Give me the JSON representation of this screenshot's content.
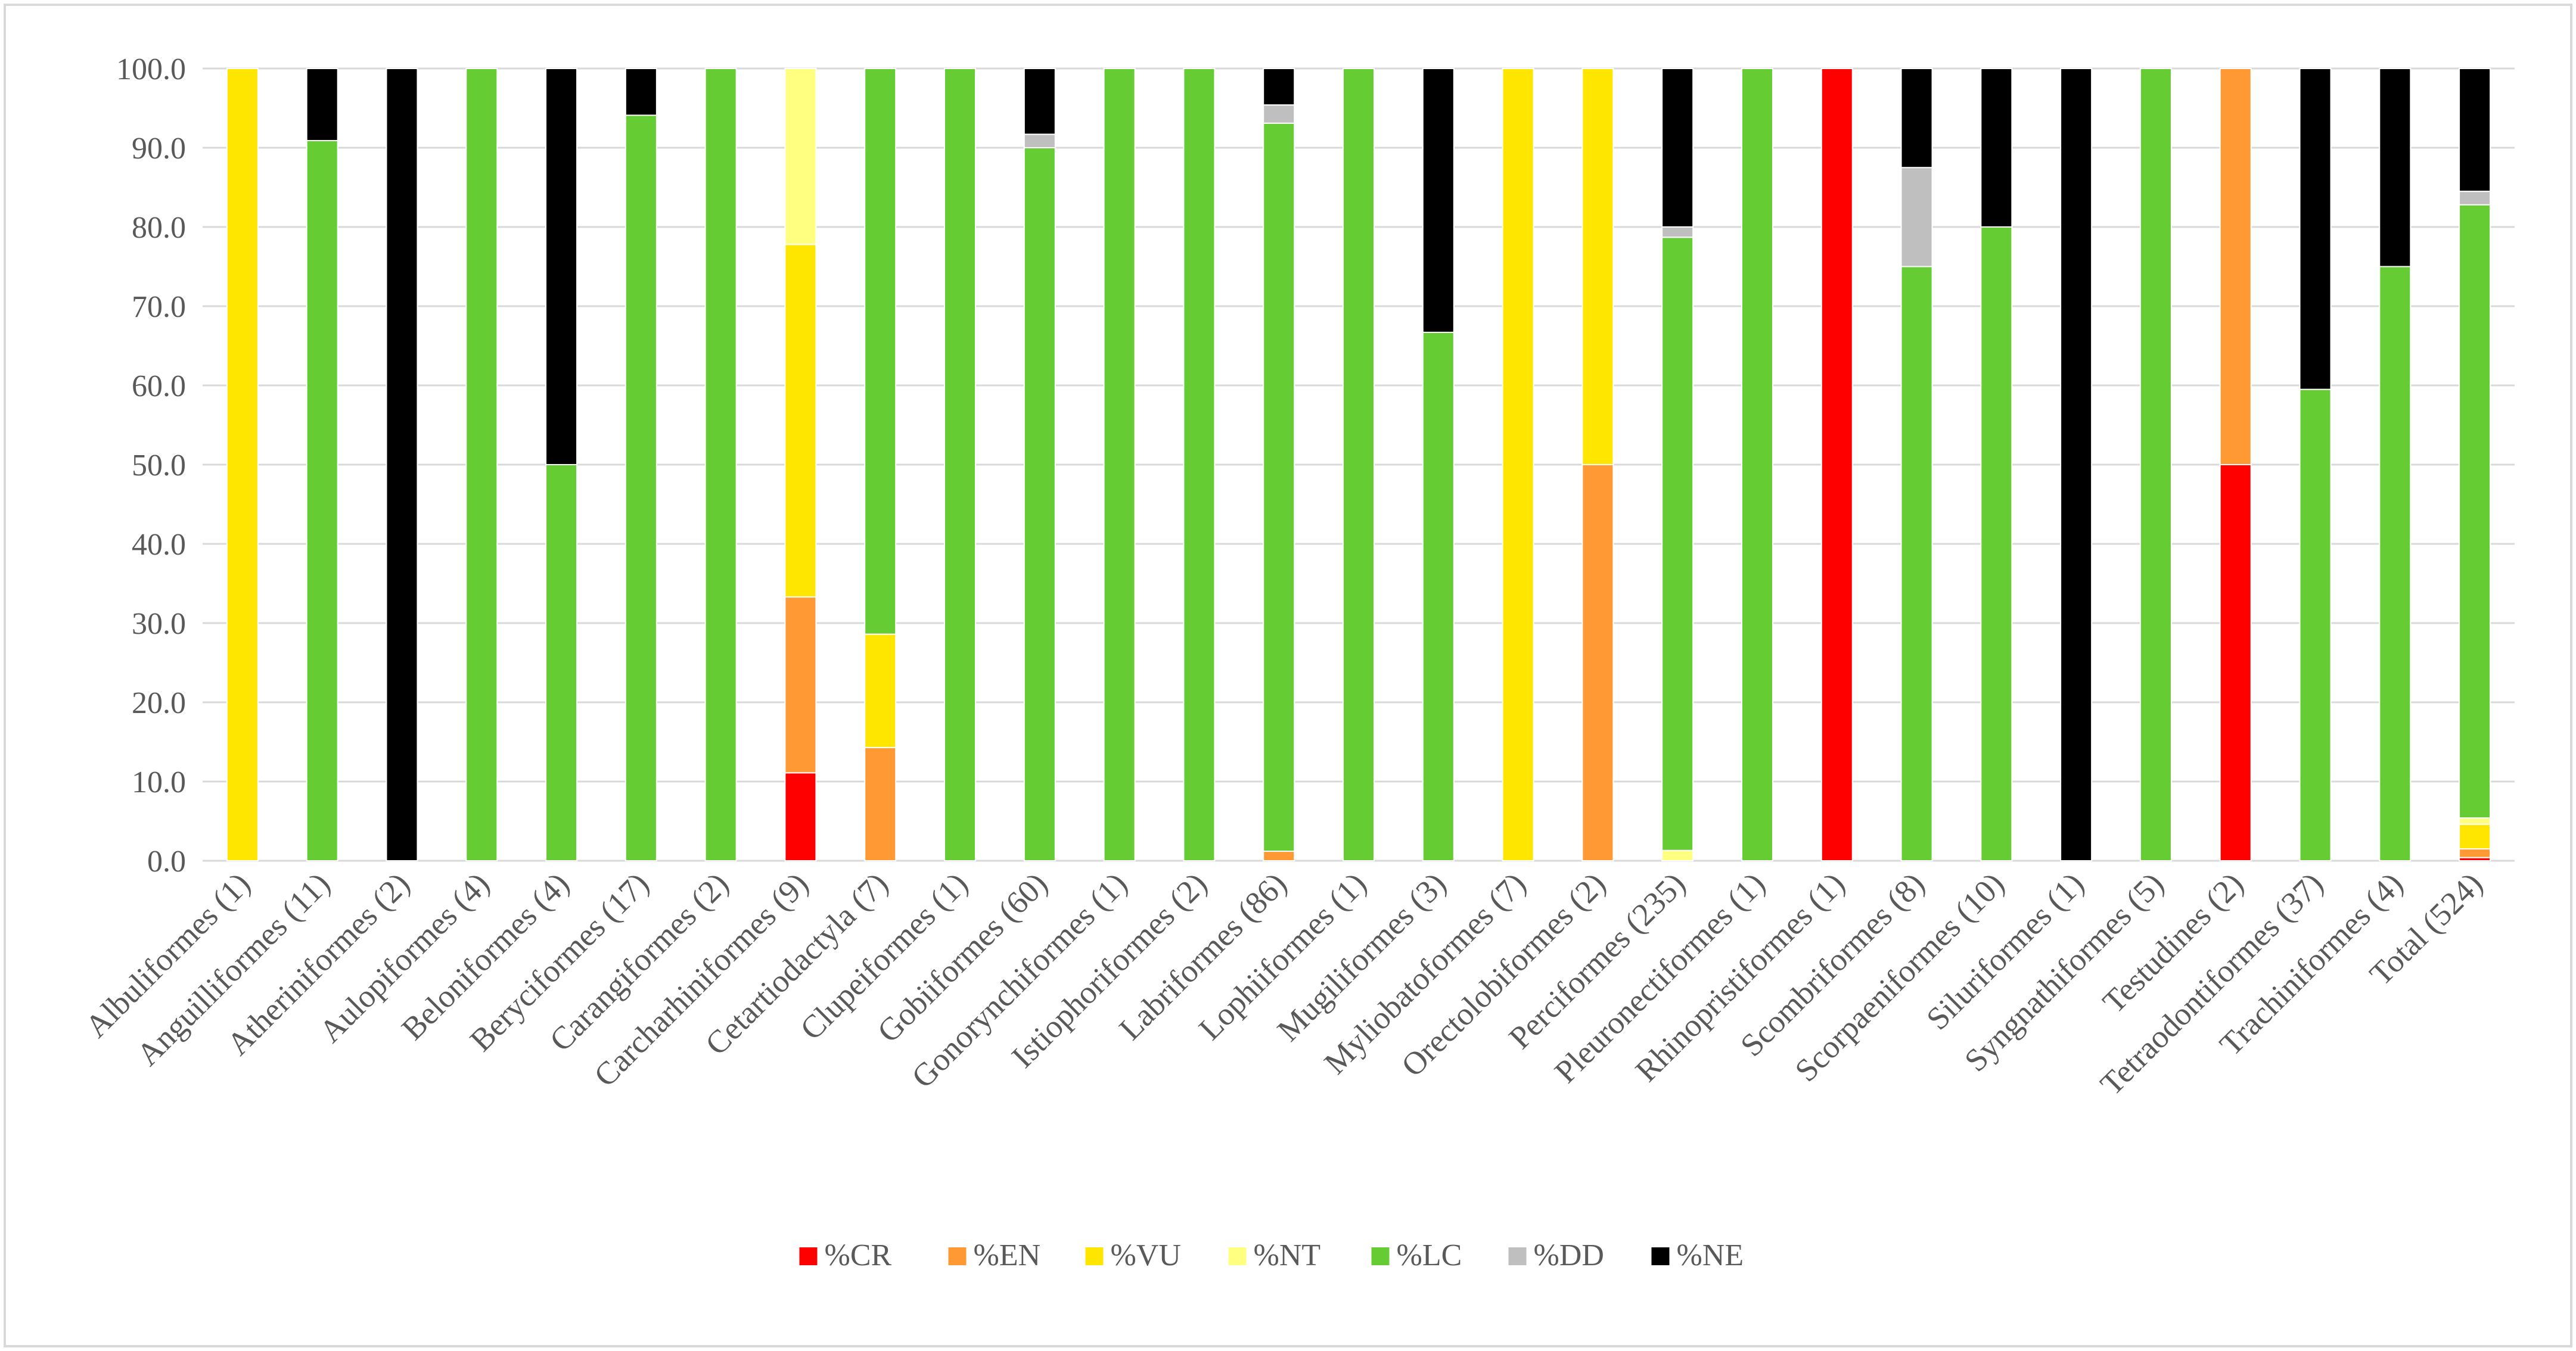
{
  "chart_data": {
    "type": "bar",
    "stacked": true,
    "title": "",
    "xlabel": "",
    "ylabel": "",
    "ylim": [
      0,
      100
    ],
    "ytick_step": 10,
    "grid": "horizontal",
    "legend_position": "bottom",
    "yticks": [
      "0.0",
      "10.0",
      "20.0",
      "30.0",
      "40.0",
      "50.0",
      "60.0",
      "70.0",
      "80.0",
      "90.0",
      "100.0"
    ],
    "categories": [
      "Albuliformes (1)",
      "Anguilliformes (11)",
      "Atheriniformes (2)",
      "Aulopiformes (4)",
      "Beloniformes (4)",
      "Beryciformes (17)",
      "Carangiformes (2)",
      "Carcharhiniformes (9)",
      "Cetartiodactyla (7)",
      "Clupeiformes (1)",
      "Gobiiformes (60)",
      "Gonorynchiformes (1)",
      "Istiophoriformes (2)",
      "Labriformes (86)",
      "Lophiiformes (1)",
      "Mugiliformes (3)",
      "Myliobatoformes (7)",
      "Orectolobiformes (2)",
      "Perciformes (235)",
      "Pleuronectiformes (1)",
      "Rhinopristiformes (1)",
      "Scombriformes (8)",
      "Scorpaeniformes (10)",
      "Siluriformes (1)",
      "Syngnathiformes (5)",
      "Testudines (2)",
      "Tetraodontiformes (37)",
      "Trachiniformes (4)",
      "Total (524)"
    ],
    "series": [
      {
        "name": "%CR",
        "color": "#ff0000",
        "values": [
          0,
          0,
          0,
          0,
          0,
          0,
          0,
          11.1,
          0,
          0,
          0,
          0,
          0,
          0,
          0,
          0,
          0,
          0,
          0,
          0,
          100,
          0,
          0,
          0,
          0,
          50,
          0,
          0,
          0.4
        ]
      },
      {
        "name": "%EN",
        "color": "#ff9933",
        "values": [
          0,
          0,
          0,
          0,
          0,
          0,
          0,
          22.2,
          14.3,
          0,
          0,
          0,
          0,
          1.2,
          0,
          0,
          0,
          50,
          0,
          0,
          0,
          0,
          0,
          0,
          0,
          50,
          0,
          0,
          1.1
        ]
      },
      {
        "name": "%VU",
        "color": "#ffe600",
        "values": [
          100,
          0,
          0,
          0,
          0,
          0,
          0,
          44.5,
          14.3,
          0,
          0,
          0,
          0,
          0,
          0,
          0,
          100,
          50,
          0,
          0,
          0,
          0,
          0,
          0,
          0,
          0,
          0,
          0,
          3.1
        ]
      },
      {
        "name": "%NT",
        "color": "#ffff80",
        "values": [
          0,
          0,
          0,
          0,
          0,
          0,
          0,
          22.2,
          0,
          0,
          0,
          0,
          0,
          0,
          0,
          0,
          0,
          0,
          1.3,
          0,
          0,
          0,
          0,
          0,
          0,
          0,
          0,
          0,
          0.8
        ]
      },
      {
        "name": "%LC",
        "color": "#66cc33",
        "values": [
          0,
          90.9,
          0,
          100,
          50,
          94.1,
          100,
          0,
          71.4,
          100,
          90,
          100,
          100,
          91.9,
          100,
          66.7,
          0,
          0,
          77.4,
          100,
          0,
          75,
          80,
          0,
          100,
          0,
          59.5,
          75,
          77.4
        ]
      },
      {
        "name": "%DD",
        "color": "#bfbfbf",
        "values": [
          0,
          0,
          0,
          0,
          0,
          0,
          0,
          0,
          0,
          0,
          1.7,
          0,
          0,
          2.3,
          0,
          0,
          0,
          0,
          1.3,
          0,
          0,
          12.5,
          0,
          0,
          0,
          0,
          0,
          0,
          1.7
        ]
      },
      {
        "name": "%NE",
        "color": "#000000",
        "values": [
          0,
          9.1,
          100,
          0,
          50,
          5.9,
          0,
          0,
          0,
          0,
          8.3,
          0,
          0,
          4.6,
          0,
          33.3,
          0,
          0,
          20,
          0,
          0,
          12.5,
          20,
          100,
          0,
          0,
          40.5,
          25,
          15.5
        ]
      }
    ]
  }
}
